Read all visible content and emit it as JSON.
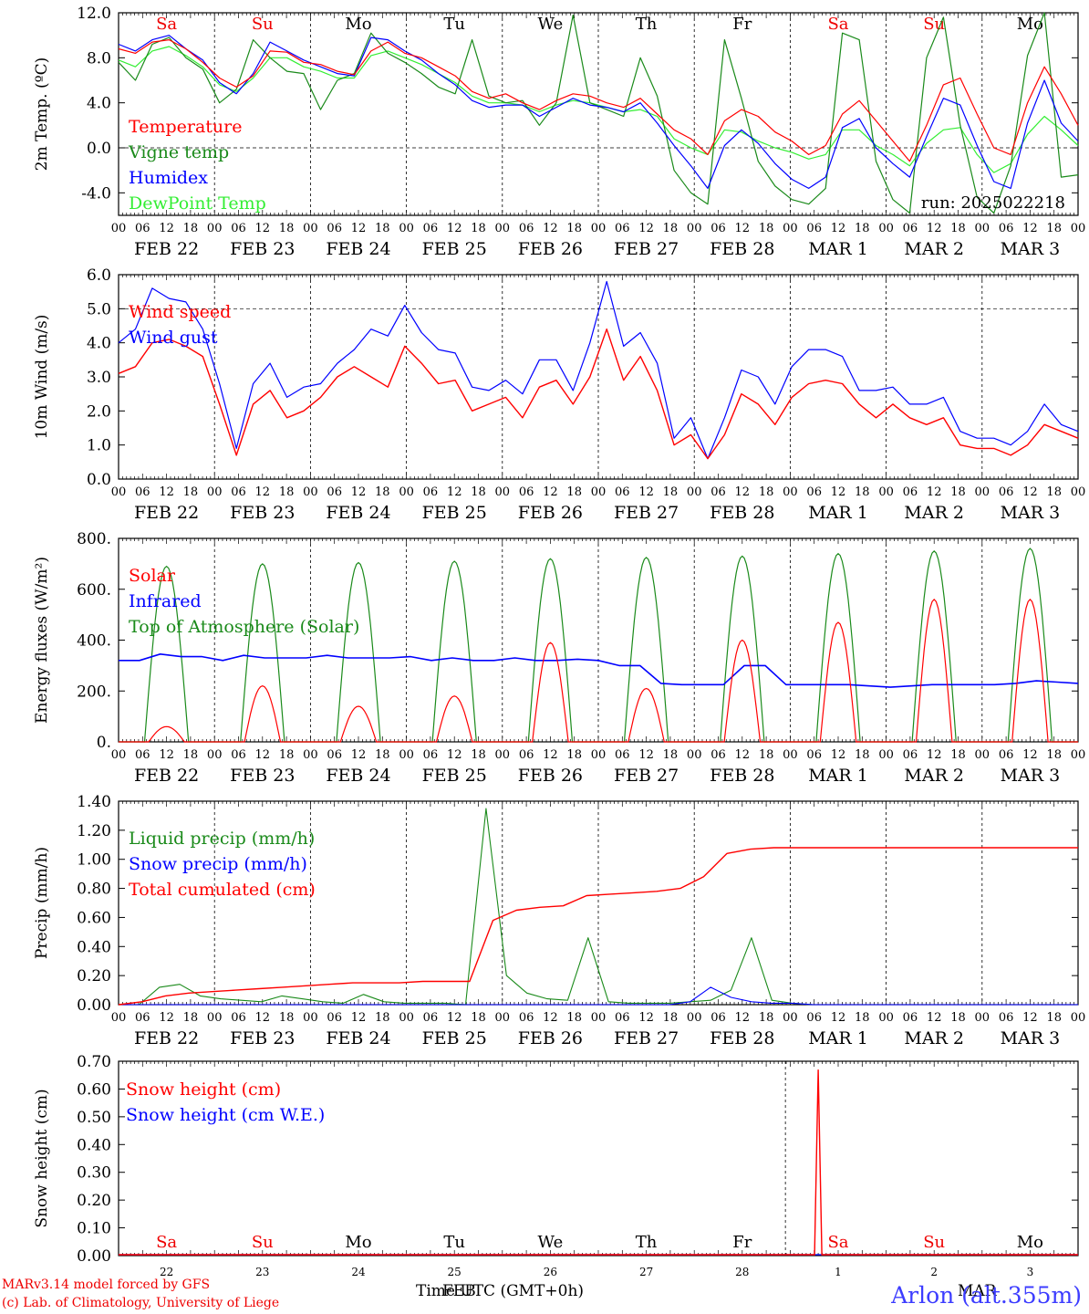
{
  "footer": {
    "credit_line1": "MARv3.14 model forced by GFS",
    "credit_line2": "(c) Lab. of Climatology, University of Liege",
    "time_axis_label": "Time UTC (GMT+0h)",
    "station": "Arlon (alt.355m)",
    "overlap_feb": "FEB",
    "overlap_mar": "MAR"
  },
  "colors": {
    "red": "#ff0000",
    "green": "#1a8a1a",
    "blue": "#0000ff",
    "lightgreen": "#33ee33",
    "grid": "#000000"
  },
  "day_labels": [
    "Sa",
    "Su",
    "Mo",
    "Tu",
    "We",
    "Th",
    "Fr",
    "Sa",
    "Su",
    "Mo"
  ],
  "day_label_colors": [
    "red",
    "red",
    "black",
    "black",
    "black",
    "black",
    "black",
    "red",
    "red",
    "black"
  ],
  "date_labels": [
    "FEB 22",
    "FEB 23",
    "FEB 24",
    "FEB 25",
    "FEB 26",
    "FEB 27",
    "FEB 28",
    "MAR  1",
    "MAR  2",
    "MAR  3"
  ],
  "hour_ticks": [
    "00",
    "06",
    "12",
    "18"
  ],
  "hour_end": "00",
  "snow_day_numbers": [
    "22",
    "23",
    "24",
    "25",
    "26",
    "27",
    "28",
    "1",
    "2",
    "3"
  ],
  "chart_data": [
    {
      "type": "line",
      "ylabel": "2m Temp. (ºC)",
      "ylim": [
        -6,
        12
      ],
      "yticks": [
        "-4.0",
        "0.0",
        "4.0",
        "8.0",
        "12.0"
      ],
      "ytick_values": [
        -4,
        0,
        4,
        8,
        12
      ],
      "run_label": "run: 2025022218",
      "x_hours_step": 6,
      "series": [
        {
          "name": "Temperature",
          "color": "red",
          "values": [
            8.8,
            8.4,
            9.4,
            9.6,
            8.8,
            7.6,
            6.2,
            5.4,
            6.4,
            8.6,
            8.5,
            7.6,
            7.4,
            6.8,
            6.5,
            8.6,
            9.4,
            8.4,
            8.0,
            7.2,
            6.4,
            5.0,
            4.4,
            4.8,
            4.0,
            3.4,
            4.2,
            4.8,
            4.6,
            4.0,
            3.6,
            4.4,
            3.0,
            1.6,
            0.8,
            -0.6,
            2.4,
            3.4,
            2.8,
            1.4,
            0.6,
            -0.6,
            0.2,
            3.0,
            4.2,
            2.4,
            0.6,
            -1.2,
            2.0,
            5.6,
            6.2,
            3.0,
            0.0,
            -0.6,
            4.0,
            7.2,
            4.8,
            2.0
          ]
        },
        {
          "name": "Vigne temp",
          "color": "green",
          "values": [
            7.6,
            6.0,
            9.2,
            9.8,
            8.0,
            7.0,
            4.0,
            5.2,
            9.6,
            8.0,
            6.8,
            6.6,
            3.4,
            6.0,
            6.6,
            10.2,
            8.4,
            7.6,
            6.6,
            5.4,
            4.8,
            9.6,
            4.6,
            4.0,
            4.2,
            2.0,
            4.0,
            11.8,
            4.0,
            3.4,
            2.8,
            8.0,
            4.6,
            -2.0,
            -4.0,
            -5.0,
            9.6,
            4.4,
            -1.2,
            -3.4,
            -4.6,
            -5.0,
            -3.6,
            10.2,
            9.6,
            -1.2,
            -4.6,
            -5.8,
            8.0,
            11.6,
            2.0,
            -4.4,
            -5.8,
            -1.6,
            8.2,
            12.0,
            -2.6,
            -2.4
          ]
        },
        {
          "name": "Humidex",
          "color": "blue",
          "values": [
            9.2,
            8.6,
            9.6,
            10.0,
            8.8,
            7.8,
            5.8,
            4.8,
            6.6,
            9.4,
            8.6,
            7.8,
            7.2,
            6.6,
            6.4,
            9.8,
            9.6,
            8.6,
            7.8,
            6.6,
            5.6,
            4.2,
            3.6,
            3.8,
            3.8,
            2.8,
            3.6,
            4.4,
            3.8,
            3.6,
            3.2,
            4.0,
            2.2,
            0.2,
            -1.6,
            -3.6,
            0.2,
            1.6,
            0.4,
            -1.4,
            -2.8,
            -3.6,
            -2.6,
            1.8,
            2.6,
            0.0,
            -1.4,
            -2.6,
            1.0,
            4.4,
            3.8,
            0.2,
            -3.0,
            -3.6,
            2.2,
            6.0,
            2.2,
            0.6
          ]
        },
        {
          "name": "DewPoint Temp",
          "color": "lightgreen",
          "values": [
            7.8,
            7.2,
            8.6,
            9.0,
            8.2,
            7.2,
            5.6,
            5.0,
            6.2,
            8.0,
            8.0,
            7.2,
            6.8,
            6.2,
            6.2,
            8.2,
            8.6,
            8.0,
            7.4,
            6.6,
            5.8,
            4.6,
            4.0,
            4.0,
            3.8,
            3.2,
            3.8,
            4.2,
            4.0,
            3.6,
            3.2,
            3.4,
            2.8,
            0.8,
            0.0,
            -0.6,
            1.6,
            1.4,
            0.6,
            0.0,
            -0.4,
            -1.0,
            -0.6,
            1.6,
            1.6,
            0.2,
            -0.6,
            -1.6,
            0.4,
            1.6,
            1.8,
            -0.6,
            -2.2,
            -1.4,
            1.2,
            2.8,
            1.6,
            0.2
          ]
        }
      ]
    },
    {
      "type": "line",
      "ylabel": "10m Wind (m/s)",
      "ylim": [
        0,
        6
      ],
      "yticks": [
        "0.0",
        "1.0",
        "2.0",
        "3.0",
        "4.0",
        "5.0",
        "6.0"
      ],
      "ytick_values": [
        0,
        1,
        2,
        3,
        4,
        5,
        6
      ],
      "dashed_line": 5,
      "series": [
        {
          "name": "Wind speed",
          "color": "red",
          "values": [
            3.1,
            3.3,
            4.0,
            4.1,
            3.9,
            3.6,
            2.2,
            0.7,
            2.2,
            2.6,
            1.8,
            2.0,
            2.4,
            3.0,
            3.3,
            3.0,
            2.7,
            3.9,
            3.4,
            2.8,
            2.9,
            2.0,
            2.2,
            2.4,
            1.8,
            2.7,
            2.9,
            2.2,
            3.0,
            4.4,
            2.9,
            3.6,
            2.6,
            1.0,
            1.3,
            0.6,
            1.3,
            2.5,
            2.2,
            1.6,
            2.4,
            2.8,
            2.9,
            2.8,
            2.2,
            1.8,
            2.2,
            1.8,
            1.6,
            1.8,
            1.0,
            0.9,
            0.9,
            0.7,
            1.0,
            1.6,
            1.4,
            1.2
          ]
        },
        {
          "name": "Wind gust",
          "color": "blue",
          "values": [
            4.0,
            4.4,
            5.6,
            5.3,
            5.2,
            4.4,
            2.8,
            0.9,
            2.8,
            3.4,
            2.4,
            2.7,
            2.8,
            3.4,
            3.8,
            4.4,
            4.2,
            5.1,
            4.3,
            3.8,
            3.7,
            2.7,
            2.6,
            2.9,
            2.5,
            3.5,
            3.5,
            2.6,
            4.0,
            5.8,
            3.9,
            4.3,
            3.4,
            1.2,
            1.8,
            0.6,
            1.8,
            3.2,
            3.0,
            2.2,
            3.3,
            3.8,
            3.8,
            3.6,
            2.6,
            2.6,
            2.7,
            2.2,
            2.2,
            2.4,
            1.4,
            1.2,
            1.2,
            1.0,
            1.4,
            2.2,
            1.6,
            1.4
          ]
        }
      ]
    },
    {
      "type": "line",
      "ylabel": "Energy fluxes (W/m²)",
      "ylim": [
        0,
        800
      ],
      "yticks": [
        "0.",
        "200.",
        "400.",
        "600.",
        "800."
      ],
      "ytick_values": [
        0,
        200,
        400,
        600,
        800
      ],
      "series": [
        {
          "name": "Solar",
          "color": "red",
          "peaks": [
            60,
            220,
            140,
            180,
            390,
            210,
            400,
            470,
            560,
            560
          ]
        },
        {
          "name": "Infrared",
          "color": "blue",
          "values": [
            320,
            320,
            345,
            335,
            335,
            320,
            340,
            330,
            330,
            330,
            340,
            330,
            330,
            330,
            335,
            320,
            330,
            320,
            320,
            330,
            320,
            320,
            325,
            320,
            300,
            300,
            230,
            225,
            225,
            225,
            300,
            300,
            225,
            225,
            225,
            225,
            220,
            215,
            220,
            225,
            225,
            225,
            225,
            230,
            240,
            235,
            230
          ]
        },
        {
          "name": "Top of Atmosphere (Solar)",
          "color": "green",
          "peaks": [
            690,
            700,
            705,
            710,
            720,
            725,
            730,
            740,
            750,
            760
          ]
        }
      ]
    },
    {
      "type": "line",
      "ylabel": "Precip (mm/h)",
      "ylim": [
        0,
        1.4
      ],
      "yticks": [
        "0.00",
        "0.20",
        "0.40",
        "0.60",
        "0.80",
        "1.00",
        "1.20",
        "1.40"
      ],
      "ytick_values": [
        0,
        0.2,
        0.4,
        0.6,
        0.8,
        1.0,
        1.2,
        1.4
      ],
      "series": [
        {
          "name": "Liquid precip (mm/h)",
          "color": "green",
          "values": [
            0,
            0,
            0.12,
            0.14,
            0.06,
            0.04,
            0.03,
            0.02,
            0.06,
            0.04,
            0.02,
            0.01,
            0.07,
            0.02,
            0.01,
            0.01,
            0.01,
            0.0,
            1.35,
            0.2,
            0.08,
            0.04,
            0.03,
            0.46,
            0.02,
            0.01,
            0.01,
            0.01,
            0.02,
            0.03,
            0.1,
            0.46,
            0.03,
            0.01,
            0.0,
            0.0,
            0.0,
            0,
            0,
            0,
            0,
            0,
            0,
            0,
            0,
            0,
            0,
            0
          ]
        },
        {
          "name": "Snow precip (mm/h)",
          "color": "blue",
          "values": [
            0,
            0,
            0,
            0,
            0,
            0,
            0,
            0,
            0,
            0,
            0,
            0,
            0,
            0,
            0,
            0,
            0,
            0,
            0,
            0,
            0,
            0,
            0,
            0,
            0,
            0,
            0,
            0,
            0.02,
            0.12,
            0.05,
            0.02,
            0.01,
            0.01,
            0,
            0,
            0,
            0,
            0,
            0,
            0,
            0,
            0,
            0,
            0,
            0,
            0,
            0
          ]
        },
        {
          "name": "Total cumulated (cm)",
          "color": "red",
          "values": [
            0.0,
            0.02,
            0.06,
            0.08,
            0.09,
            0.1,
            0.11,
            0.12,
            0.13,
            0.14,
            0.15,
            0.15,
            0.15,
            0.16,
            0.16,
            0.16,
            0.58,
            0.65,
            0.67,
            0.68,
            0.75,
            0.76,
            0.77,
            0.78,
            0.8,
            0.88,
            1.04,
            1.07,
            1.08,
            1.08,
            1.08,
            1.08,
            1.08,
            1.08,
            1.08,
            1.08,
            1.08,
            1.08,
            1.08,
            1.08,
            1.08,
            1.08
          ]
        }
      ]
    },
    {
      "type": "line",
      "ylabel": "Snow height (cm)",
      "ylim": [
        0,
        0.7
      ],
      "yticks": [
        "0.00",
        "0.10",
        "0.20",
        "0.30",
        "0.40",
        "0.50",
        "0.60",
        "0.70"
      ],
      "ytick_values": [
        0,
        0.1,
        0.2,
        0.3,
        0.4,
        0.5,
        0.6,
        0.7
      ],
      "series": [
        {
          "name": "Snow height (cm)",
          "color": "red",
          "spike_value": 0.67
        },
        {
          "name": "Snow height (cm W.E.)",
          "color": "blue"
        }
      ]
    }
  ]
}
